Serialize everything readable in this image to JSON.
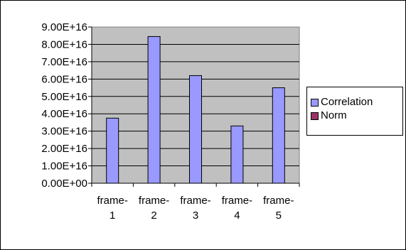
{
  "chart_data": {
    "type": "bar",
    "categories": [
      "frame-1",
      "frame-2",
      "frame-3",
      "frame-4",
      "frame-5"
    ],
    "category_lines": [
      [
        "frame-",
        "1"
      ],
      [
        "frame-",
        "2"
      ],
      [
        "frame-",
        "3"
      ],
      [
        "frame-",
        "4"
      ],
      [
        "frame-",
        "5"
      ]
    ],
    "series": [
      {
        "name": "Correlation",
        "values": [
          3.75e+16,
          8.45e+16,
          6.2e+16,
          3.3e+16,
          5.5e+16
        ],
        "color": "#9999ff"
      },
      {
        "name": "Norm",
        "values": [
          0,
          0,
          0,
          0,
          0
        ],
        "color": "#993366"
      }
    ],
    "ylim": [
      0,
      9e+16
    ],
    "yticks": [
      "0.00E+00",
      "1.00E+16",
      "2.00E+16",
      "3.00E+16",
      "4.00E+16",
      "5.00E+16",
      "6.00E+16",
      "7.00E+16",
      "8.00E+16",
      "9.00E+16"
    ],
    "grid": true,
    "plot_background": "#c0c0c0",
    "legend_position": "right"
  }
}
